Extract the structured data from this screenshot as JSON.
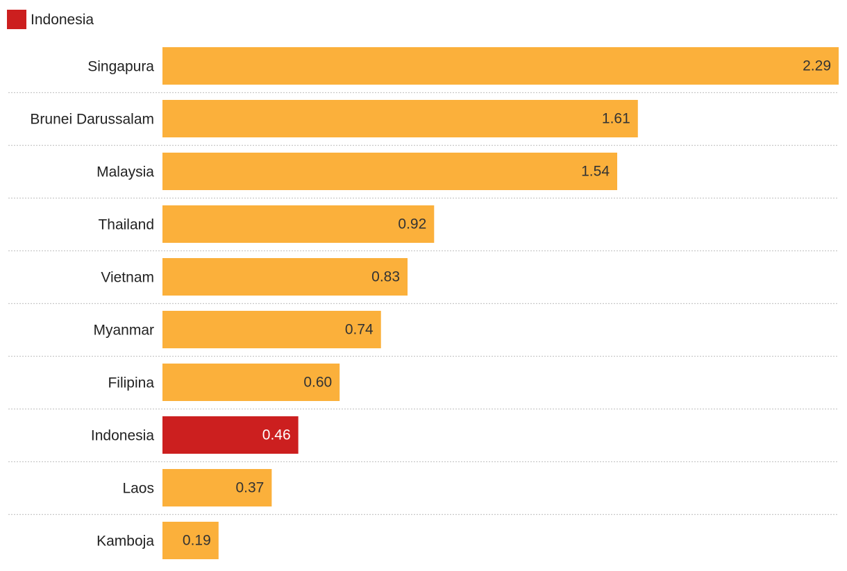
{
  "chart_data": {
    "type": "bar",
    "orientation": "horizontal",
    "legend": {
      "position": "top-left",
      "entries": [
        {
          "label": "Indonesia",
          "color": "#cc1f1f"
        }
      ]
    },
    "categories": [
      "Singapura",
      "Brunei Darussalam",
      "Malaysia",
      "Thailand",
      "Vietnam",
      "Myanmar",
      "Filipina",
      "Indonesia",
      "Laos",
      "Kamboja"
    ],
    "values": [
      2.29,
      1.61,
      1.54,
      0.92,
      0.83,
      0.74,
      0.6,
      0.46,
      0.37,
      0.19
    ],
    "value_labels": [
      "2.29",
      "1.61",
      "1.54",
      "0.92",
      "0.83",
      "0.74",
      "0.60",
      "0.46",
      "0.37",
      "0.19"
    ],
    "highlight_category": "Indonesia",
    "colors": {
      "default": "#fbb03b",
      "highlight": "#cc1f1f",
      "label_on_default": "#333333",
      "label_on_highlight": "#ffffff",
      "category_text": "#222222",
      "separator": "#c8c8c8"
    },
    "xlim": [
      0,
      2.29
    ],
    "grid": false,
    "separators": "dotted"
  }
}
